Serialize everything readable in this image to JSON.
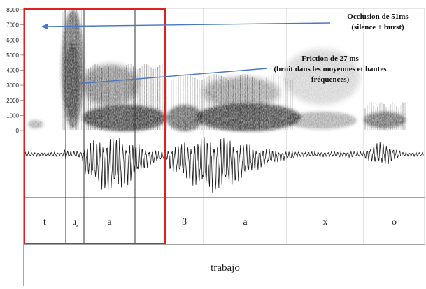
{
  "frequency_ticks": [
    "8000",
    "7000",
    "6000",
    "5000",
    "4000",
    "3000",
    "2000",
    "1000",
    "0"
  ],
  "segments": [
    {
      "label": "t"
    },
    {
      "label": "ɹ̥"
    },
    {
      "label": "a"
    },
    {
      "label": ""
    },
    {
      "label": "β"
    },
    {
      "label": "a"
    },
    {
      "label": "x"
    },
    {
      "label": "o"
    }
  ],
  "word": "trabajo",
  "annotations": {
    "occlusion": {
      "line1": "Occlusion de 51ms",
      "line2": "(silence + burst)"
    },
    "friction": {
      "line1": "Friction de 27 ms",
      "line2": "(bruit dans les moyennes et hautes",
      "line3": "fréquences)"
    }
  },
  "colors": {
    "highlight_box": "#e02020",
    "arrow": "#4a78c2",
    "spectrogram": "#1a1a1a"
  }
}
